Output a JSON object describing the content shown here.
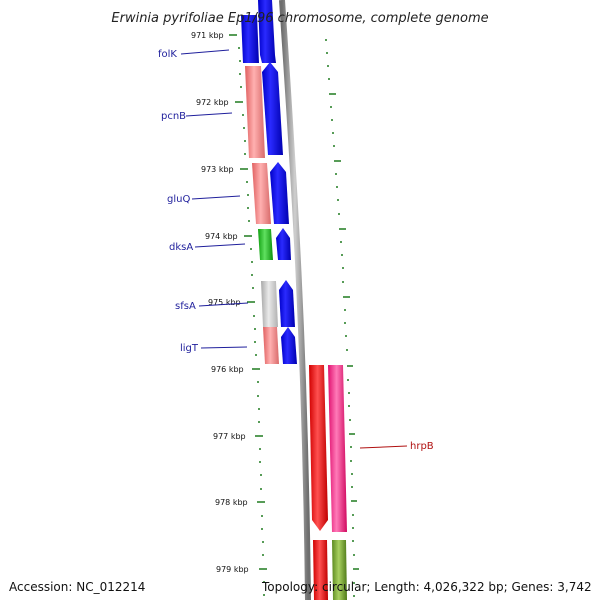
{
  "title": "Erwinia pyrifoliae Ep1/96 chromosome, complete genome",
  "accession": "Accession: NC_012214",
  "summary": "Topology: circular; Length: 4,026,322 bp; Genes: 3,742",
  "colors": {
    "backbone": "#8c8c8c",
    "tick": "#1f7a1f",
    "forward_cds": "#0000f0",
    "gene_label_left": "#1f1f9c",
    "gene_label_right": "#b01010"
  },
  "ticks": [
    "971 kbp",
    "972 kbp",
    "973 kbp",
    "974 kbp",
    "975 kbp",
    "976 kbp",
    "977 kbp",
    "978 kbp",
    "979 kbp"
  ],
  "genes": [
    {
      "name": "folK"
    },
    {
      "name": "pcnB"
    },
    {
      "name": "gluQ"
    },
    {
      "name": "dksA"
    },
    {
      "name": "sfsA"
    },
    {
      "name": "ligT"
    },
    {
      "name": "hrpB"
    }
  ]
}
